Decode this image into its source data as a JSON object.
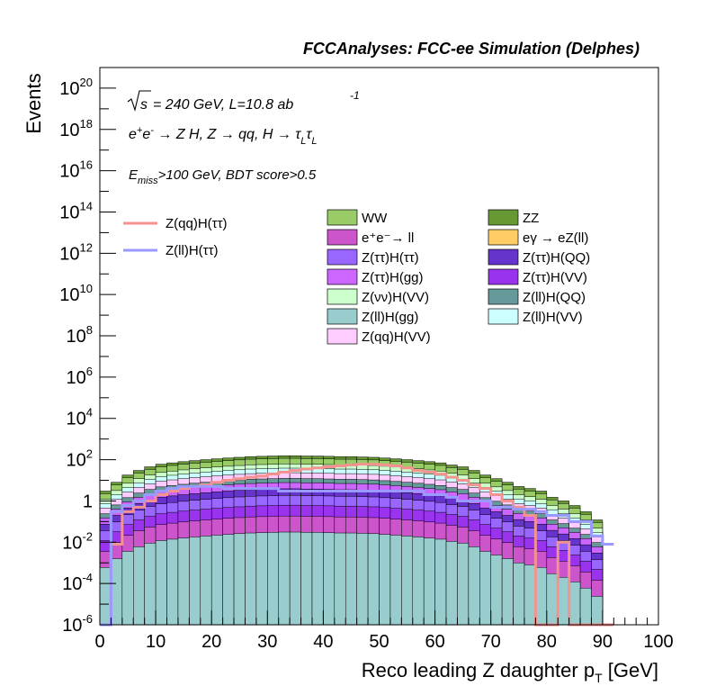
{
  "header": {
    "title": "FCCAnalyses: FCC-ee Simulation (Delphes)"
  },
  "annotations": {
    "line1_sqrt": "√s",
    "line1_rest": "= 240 GeV, L=10.8 ab",
    "line1_exp": "-1",
    "line2": "e⁺e⁻ → Z H, Z → qq, H → τ_L τ_L",
    "line3": "E_miss>100 GeV, BDT score>0.5"
  },
  "legend_signals": [
    {
      "label": "Z(qq)H(ττ)",
      "color": "#f4928f"
    },
    {
      "label": "Z(ll)H(ττ)",
      "color": "#9999ff"
    }
  ],
  "legend_backgrounds": [
    {
      "label": "WW",
      "color": "#99cc66"
    },
    {
      "label": "ZZ",
      "color": "#669933"
    },
    {
      "label": "e⁺e⁻→ ll",
      "color": "#cc55cc"
    },
    {
      "label": "eγ → eZ(ll)",
      "color": "#ffcc66"
    },
    {
      "label": "Z(ττ)H(ττ)",
      "color": "#9966ff"
    },
    {
      "label": "Z(ττ)H(QQ)",
      "color": "#6633cc"
    },
    {
      "label": "Z(ττ)H(gg)",
      "color": "#cc66ff"
    },
    {
      "label": "Z(ττ)H(VV)",
      "color": "#9933ee"
    },
    {
      "label": "Z(νν)H(VV)",
      "color": "#ccffcc"
    },
    {
      "label": "Z(ll)H(QQ)",
      "color": "#669999"
    },
    {
      "label": "Z(ll)H(gg)",
      "color": "#99cccc"
    },
    {
      "label": "Z(ll)H(VV)",
      "color": "#ccffff"
    },
    {
      "label": "Z(qq)H(VV)",
      "color": "#ffccff"
    }
  ],
  "chart_data": {
    "type": "area",
    "title": "FCCAnalyses: FCC-ee Simulation (Delphes)",
    "xlabel": "Reco leading Z daughter p_T [GeV]",
    "ylabel": "Events",
    "xlim": [
      0,
      100
    ],
    "ylim": [
      1e-06,
      1e+21
    ],
    "yscale": "log",
    "x_ticks": [
      0,
      10,
      20,
      30,
      40,
      50,
      60,
      70,
      80,
      90,
      100
    ],
    "y_ticks": [
      "10^-6",
      "10^-4",
      "10^-2",
      "1",
      "10^2",
      "10^4",
      "10^6",
      "10^8",
      "10^10",
      "10^12",
      "10^14",
      "10^16",
      "10^18",
      "10^20"
    ],
    "y_tick_values": [
      -6,
      -4,
      -2,
      0,
      2,
      4,
      6,
      8,
      10,
      12,
      14,
      16,
      18,
      20
    ],
    "bin_width": 2,
    "stack_totals": {
      "name": "ZZ (stack top)",
      "x": [
        1,
        3,
        5,
        7,
        9,
        11,
        13,
        15,
        17,
        19,
        21,
        23,
        25,
        27,
        29,
        31,
        33,
        35,
        37,
        39,
        41,
        43,
        45,
        47,
        49,
        51,
        53,
        55,
        57,
        59,
        61,
        63,
        65,
        67,
        69,
        71,
        73,
        75,
        77,
        79,
        81,
        83,
        85,
        87,
        89,
        91
      ],
      "values": [
        3,
        8,
        18,
        30,
        45,
        60,
        70,
        80,
        90,
        100,
        110,
        120,
        130,
        140,
        145,
        150,
        155,
        155,
        150,
        150,
        145,
        140,
        140,
        135,
        130,
        120,
        110,
        100,
        90,
        80,
        70,
        55,
        45,
        30,
        18,
        12,
        8,
        5,
        4,
        3,
        1.5,
        1,
        0.6,
        0.3,
        0.12,
        0
      ]
    },
    "series": [
      {
        "name": "Z(qq)H(ττ)",
        "x": [
          1,
          3,
          5,
          7,
          9,
          11,
          13,
          15,
          17,
          19,
          21,
          23,
          25,
          27,
          29,
          31,
          33,
          35,
          37,
          39,
          41,
          43,
          45,
          47,
          49,
          51,
          53,
          55,
          57,
          59,
          61,
          63,
          65,
          67,
          69,
          71,
          73,
          75,
          77,
          79,
          81,
          83,
          85,
          87,
          89,
          91
        ],
        "values": [
          0,
          0.008,
          0.3,
          0.5,
          1,
          2,
          3,
          4,
          5,
          6,
          8,
          10,
          12,
          14,
          16,
          20,
          25,
          30,
          35,
          40,
          45,
          50,
          55,
          60,
          60,
          55,
          50,
          40,
          30,
          25,
          20,
          14,
          10,
          6,
          4,
          2,
          1,
          0.5,
          0.2,
          0,
          0,
          0.01,
          0,
          0,
          0,
          0
        ]
      },
      {
        "name": "Z(ll)H(ττ)",
        "x": [
          1,
          3,
          5,
          7,
          9,
          11,
          13,
          15,
          17,
          19,
          21,
          23,
          25,
          27,
          29,
          31,
          33,
          35,
          37,
          39,
          41,
          43,
          45,
          47,
          49,
          51,
          53,
          55,
          57,
          59,
          61,
          63,
          65,
          67,
          69,
          71,
          73,
          75,
          77,
          79,
          81,
          83,
          85,
          87,
          89,
          91
        ],
        "values": [
          0,
          0.3,
          0.6,
          1,
          2,
          3,
          4,
          5,
          5,
          5,
          5,
          4,
          4,
          4,
          4,
          4,
          3,
          3,
          3,
          3,
          3,
          3,
          3,
          3,
          3,
          3,
          3,
          3,
          3,
          2,
          2,
          1.5,
          1,
          1,
          1,
          0.5,
          0.5,
          0.4,
          0.4,
          0.3,
          0.2,
          0.2,
          0.1,
          0.1,
          0.02,
          0.008
        ]
      }
    ]
  }
}
